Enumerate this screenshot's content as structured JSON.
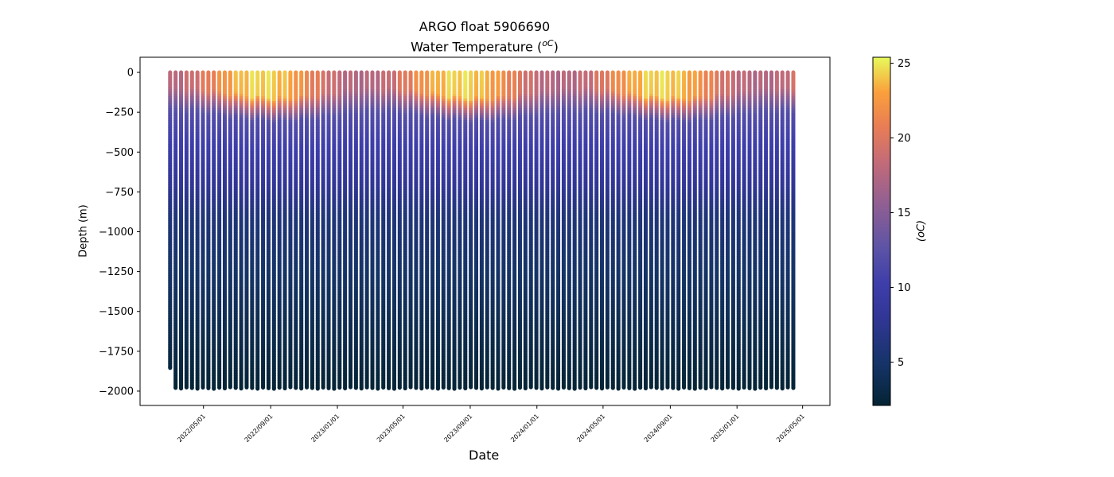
{
  "chart_data": {
    "type": "scatter",
    "title": "ARGO float 5906690",
    "subtitle_prefix": "Water Temperature (",
    "subtitle_unit": "oC",
    "subtitle_suffix": ")",
    "xlabel": "Date",
    "ylabel": "Depth (m)",
    "colorbar_label": "(oC)",
    "colormap": "thermal",
    "grid": false,
    "xlim": [
      "2022-01-05",
      "2025-06-20"
    ],
    "ylim": [
      -2090,
      95
    ],
    "x_ticks": [
      "2022/05/01",
      "2022/09/01",
      "2023/01/01",
      "2023/05/01",
      "2023/09/01",
      "2024/01/01",
      "2024/05/01",
      "2024/09/01",
      "2025/01/01",
      "2025/05/01"
    ],
    "y_ticks": [
      0,
      -250,
      -500,
      -750,
      -1000,
      -1250,
      -1500,
      -1750,
      -2000
    ],
    "colorbar_range": [
      2.1,
      25.4
    ],
    "colorbar_ticks": [
      5,
      10,
      15,
      20,
      25
    ],
    "profiles": {
      "first_date": "2022-03-01",
      "last_date": "2025-05-07",
      "interval_days": 10,
      "count": 115,
      "max_depth_first_profile": -1855,
      "typical_max_depth": -1980,
      "surface_temperature_range": [
        18,
        25
      ],
      "mixed_layer_depth": -110
    }
  }
}
